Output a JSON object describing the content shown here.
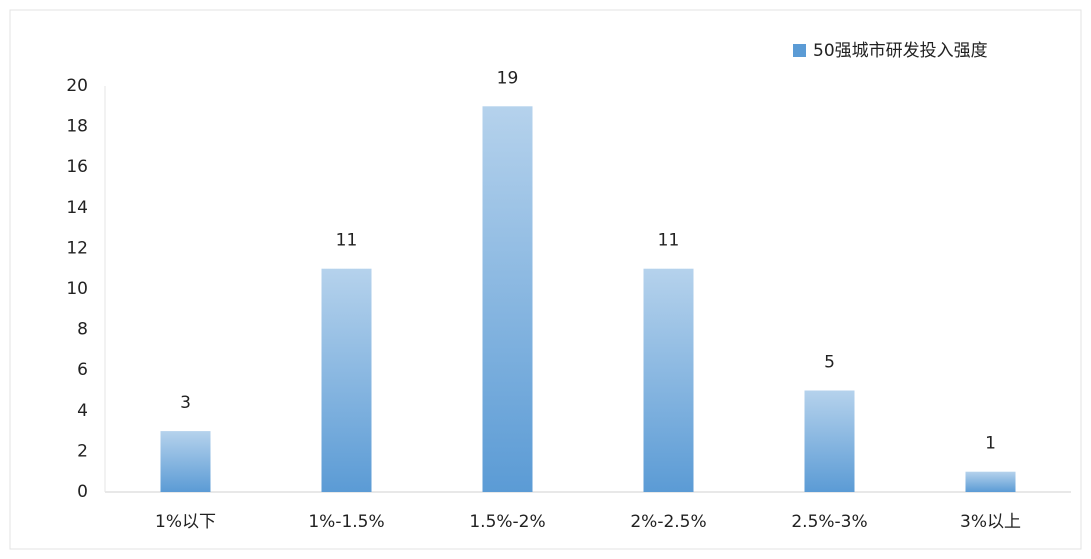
{
  "chart_data": {
    "type": "bar",
    "categories": [
      "1%以下",
      "1%-1.5%",
      "1.5%-2%",
      "2%-2.5%",
      "2.5%-3%",
      "3%以上"
    ],
    "series": [
      {
        "name": "50强城市研发投入强度",
        "color": "#5b9bd5",
        "values": [
          3,
          11,
          19,
          11,
          5,
          1
        ]
      }
    ],
    "ylim": [
      0,
      20
    ],
    "yticks": [
      0,
      2,
      4,
      6,
      8,
      10,
      12,
      14,
      16,
      18,
      20
    ],
    "grid": false,
    "legend": "top-right"
  }
}
